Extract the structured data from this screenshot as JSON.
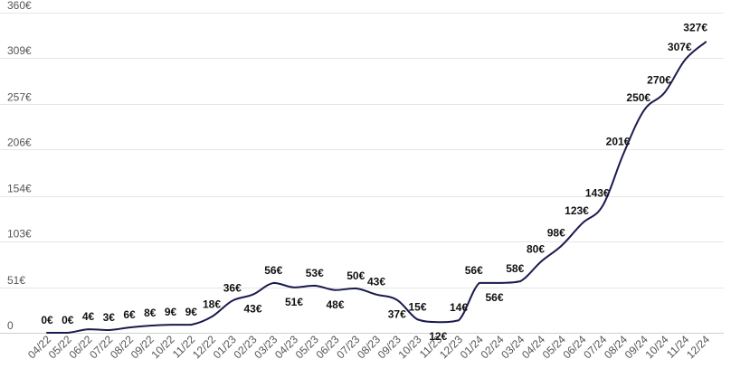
{
  "chart_data": {
    "type": "line",
    "title": "",
    "xlabel": "",
    "ylabel": "",
    "categories": [
      "04/22",
      "05/22",
      "06/22",
      "07/22",
      "08/22",
      "09/22",
      "10/22",
      "11/22",
      "12/22",
      "01/23",
      "02/23",
      "03/23",
      "04/23",
      "05/23",
      "06/23",
      "07/23",
      "08/23",
      "09/23",
      "10/23",
      "11/23",
      "12/23",
      "01/24",
      "02/24",
      "03/24",
      "04/24",
      "05/24",
      "06/24",
      "07/24",
      "08/24",
      "09/24",
      "10/24",
      "11/24",
      "12/24"
    ],
    "series": [
      {
        "values": [
          0,
          0,
          4,
          3,
          6,
          8,
          9,
          9,
          18,
          36,
          43,
          56,
          51,
          53,
          48,
          50,
          43,
          37,
          15,
          12,
          14,
          56,
          56,
          58,
          80,
          98,
          123,
          143,
          201,
          250,
          270,
          307,
          327
        ],
        "labels": [
          "0€",
          "0€",
          "4€",
          "3€",
          "6€",
          "8€",
          "9€",
          "9€",
          "18€",
          "36€",
          "43€",
          "56€",
          "51€",
          "53€",
          "48€",
          "50€",
          "43€",
          "37€",
          "15€",
          "12€",
          "14€",
          "56€",
          "56€",
          "58€",
          "80€",
          "98€",
          "123€",
          "143€",
          "201€",
          "250€",
          "270€",
          "307€",
          "327€"
        ]
      }
    ],
    "y_ticks": [
      0,
      51,
      103,
      154,
      206,
      257,
      309,
      360
    ],
    "y_tick_labels": [
      "0",
      "51€",
      "103€",
      "154€",
      "206€",
      "257€",
      "309€",
      "360€"
    ],
    "ylim": [
      0,
      360
    ],
    "grid": true,
    "legend": "none",
    "colors": {
      "line": "#1a1a4e",
      "grid": "#e6e6e6"
    }
  }
}
